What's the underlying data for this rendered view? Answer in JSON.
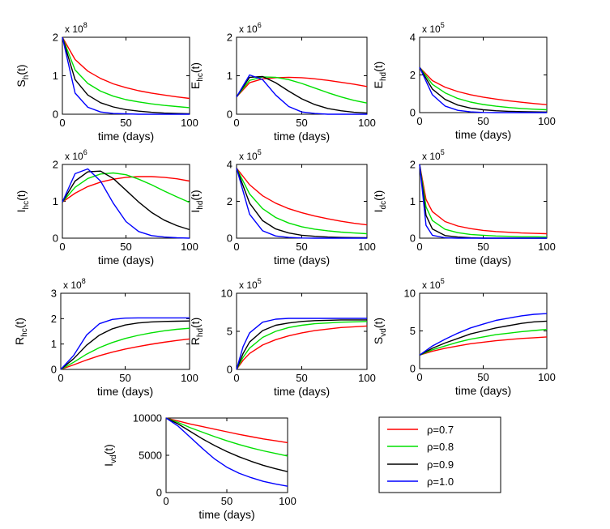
{
  "figure": {
    "background": "#ffffff"
  },
  "legend": {
    "placement": "bottom-right",
    "entries": [
      {
        "label": "ρ=0.7",
        "color": "#ff0000"
      },
      {
        "label": "ρ=0.8",
        "color": "#00e000"
      },
      {
        "label": "ρ=0.9",
        "color": "#000000"
      },
      {
        "label": "ρ=1.0",
        "color": "#0000ff"
      }
    ]
  },
  "chart_data": [
    {
      "type": "line",
      "id": "Sh",
      "ylabel": {
        "main": "S",
        "sub": "h",
        "suffix": "(t)"
      },
      "xlabel": "time (days)",
      "multiplier": {
        "base": "x 10",
        "exp": "8"
      },
      "xlim": [
        0,
        100
      ],
      "ylim": [
        0,
        2
      ],
      "xticks": [
        "0",
        "50",
        "100"
      ],
      "yticks": [
        "0",
        "1",
        "2"
      ],
      "x": [
        0,
        10,
        20,
        30,
        40,
        50,
        60,
        70,
        80,
        90,
        100
      ],
      "series": [
        {
          "name": "ρ=0.7",
          "values": [
            2.0,
            1.42,
            1.12,
            0.93,
            0.79,
            0.69,
            0.61,
            0.55,
            0.5,
            0.45,
            0.41
          ]
        },
        {
          "name": "ρ=0.8",
          "values": [
            2.0,
            1.15,
            0.8,
            0.6,
            0.47,
            0.38,
            0.32,
            0.27,
            0.23,
            0.2,
            0.17
          ]
        },
        {
          "name": "ρ=0.9",
          "values": [
            2.0,
            0.9,
            0.5,
            0.3,
            0.19,
            0.12,
            0.08,
            0.05,
            0.03,
            0.02,
            0.01
          ]
        },
        {
          "name": "ρ=1.0",
          "values": [
            2.0,
            0.55,
            0.18,
            0.06,
            0.02,
            0.01,
            0.0,
            0.0,
            0.0,
            0.0,
            0.0
          ]
        }
      ]
    },
    {
      "type": "line",
      "id": "Ehc",
      "ylabel": {
        "main": "E",
        "sub": "hc",
        "suffix": "(t)"
      },
      "xlabel": "time (days)",
      "multiplier": {
        "base": "x 10",
        "exp": "6"
      },
      "xlim": [
        0,
        100
      ],
      "ylim": [
        0,
        2
      ],
      "xticks": [
        "0",
        "50",
        "100"
      ],
      "yticks": [
        "0",
        "1",
        "2"
      ],
      "x": [
        0,
        10,
        20,
        30,
        40,
        50,
        60,
        70,
        80,
        90,
        100
      ],
      "series": [
        {
          "name": "ρ=0.7",
          "values": [
            0.45,
            0.82,
            0.92,
            0.95,
            0.96,
            0.95,
            0.92,
            0.88,
            0.83,
            0.78,
            0.72
          ]
        },
        {
          "name": "ρ=0.8",
          "values": [
            0.45,
            0.88,
            0.97,
            0.96,
            0.9,
            0.8,
            0.68,
            0.56,
            0.45,
            0.36,
            0.29
          ]
        },
        {
          "name": "ρ=0.9",
          "values": [
            0.45,
            0.96,
            0.98,
            0.82,
            0.6,
            0.4,
            0.25,
            0.15,
            0.09,
            0.05,
            0.03
          ]
        },
        {
          "name": "ρ=1.0",
          "values": [
            0.45,
            1.02,
            0.9,
            0.5,
            0.2,
            0.06,
            0.02,
            0.0,
            0.0,
            0.0,
            0.0
          ]
        }
      ]
    },
    {
      "type": "line",
      "id": "Ehd",
      "ylabel": {
        "main": "E",
        "sub": "hd",
        "suffix": "(t)"
      },
      "xlabel": "time (days)",
      "multiplier": {
        "base": "x 10",
        "exp": "5"
      },
      "xlim": [
        0,
        100
      ],
      "ylim": [
        0,
        4
      ],
      "xticks": [
        "0",
        "50",
        "100"
      ],
      "yticks": [
        "0",
        "2",
        "4"
      ],
      "x": [
        0,
        10,
        20,
        30,
        40,
        50,
        60,
        70,
        80,
        90,
        100
      ],
      "series": [
        {
          "name": "ρ=0.7",
          "values": [
            2.4,
            1.7,
            1.35,
            1.12,
            0.95,
            0.82,
            0.72,
            0.63,
            0.55,
            0.48,
            0.42
          ]
        },
        {
          "name": "ρ=0.8",
          "values": [
            2.4,
            1.5,
            1.05,
            0.75,
            0.56,
            0.43,
            0.34,
            0.27,
            0.22,
            0.18,
            0.15
          ]
        },
        {
          "name": "ρ=0.9",
          "values": [
            2.4,
            1.25,
            0.7,
            0.4,
            0.24,
            0.15,
            0.1,
            0.07,
            0.05,
            0.04,
            0.03
          ]
        },
        {
          "name": "ρ=1.0",
          "values": [
            2.4,
            0.95,
            0.35,
            0.12,
            0.04,
            0.01,
            0.0,
            0.0,
            0.0,
            0.0,
            0.0
          ]
        }
      ]
    },
    {
      "type": "line",
      "id": "Ihc",
      "ylabel": {
        "main": "I",
        "sub": "hc",
        "suffix": "(t)"
      },
      "xlabel": "time (days)",
      "multiplier": {
        "base": "x 10",
        "exp": "6"
      },
      "xlim": [
        0,
        100
      ],
      "ylim": [
        0,
        2
      ],
      "xticks": [
        "0",
        "50",
        "100"
      ],
      "yticks": [
        "0",
        "1",
        "2"
      ],
      "x": [
        0,
        10,
        20,
        30,
        40,
        50,
        60,
        70,
        80,
        90,
        100
      ],
      "series": [
        {
          "name": "ρ=0.7",
          "values": [
            0.98,
            1.22,
            1.4,
            1.52,
            1.6,
            1.65,
            1.67,
            1.67,
            1.65,
            1.61,
            1.55
          ]
        },
        {
          "name": "ρ=0.8",
          "values": [
            0.98,
            1.38,
            1.62,
            1.74,
            1.77,
            1.72,
            1.6,
            1.45,
            1.28,
            1.12,
            0.97
          ]
        },
        {
          "name": "ρ=0.9",
          "values": [
            0.98,
            1.55,
            1.8,
            1.82,
            1.62,
            1.3,
            0.98,
            0.7,
            0.49,
            0.34,
            0.23
          ]
        },
        {
          "name": "ρ=1.0",
          "values": [
            0.98,
            1.75,
            1.88,
            1.55,
            0.95,
            0.45,
            0.18,
            0.07,
            0.03,
            0.01,
            0.0
          ]
        }
      ]
    },
    {
      "type": "line",
      "id": "Ihd",
      "ylabel": {
        "main": "I",
        "sub": "hd",
        "suffix": "(t)"
      },
      "xlabel": "time (days)",
      "multiplier": {
        "base": "x 10",
        "exp": "5"
      },
      "xlim": [
        0,
        100
      ],
      "ylim": [
        0,
        4
      ],
      "xticks": [
        "0",
        "50",
        "100"
      ],
      "yticks": [
        "0",
        "2",
        "4"
      ],
      "x": [
        0,
        10,
        20,
        30,
        40,
        50,
        60,
        70,
        80,
        90,
        100
      ],
      "series": [
        {
          "name": "ρ=0.7",
          "values": [
            3.8,
            2.9,
            2.3,
            1.9,
            1.6,
            1.38,
            1.2,
            1.05,
            0.92,
            0.81,
            0.72
          ]
        },
        {
          "name": "ρ=0.8",
          "values": [
            3.8,
            2.4,
            1.6,
            1.12,
            0.82,
            0.62,
            0.49,
            0.4,
            0.33,
            0.28,
            0.24
          ]
        },
        {
          "name": "ρ=0.9",
          "values": [
            3.8,
            1.9,
            0.95,
            0.5,
            0.28,
            0.16,
            0.1,
            0.06,
            0.04,
            0.03,
            0.02
          ]
        },
        {
          "name": "ρ=1.0",
          "values": [
            3.8,
            1.3,
            0.4,
            0.12,
            0.04,
            0.01,
            0.0,
            0.0,
            0.0,
            0.0,
            0.0
          ]
        }
      ]
    },
    {
      "type": "line",
      "id": "Idc",
      "ylabel": {
        "main": "I",
        "sub": "dc",
        "suffix": "(t)"
      },
      "xlabel": "time (days)",
      "multiplier": {
        "base": "x 10",
        "exp": "5"
      },
      "xlim": [
        0,
        100
      ],
      "ylim": [
        0,
        2
      ],
      "xticks": [
        "0",
        "50",
        "100"
      ],
      "yticks": [
        "0",
        "1",
        "2"
      ],
      "x": [
        0,
        5,
        10,
        20,
        30,
        40,
        50,
        60,
        70,
        80,
        90,
        100
      ],
      "series": [
        {
          "name": "ρ=0.7",
          "values": [
            2.0,
            1.05,
            0.72,
            0.45,
            0.33,
            0.26,
            0.21,
            0.18,
            0.16,
            0.14,
            0.13,
            0.12
          ]
        },
        {
          "name": "ρ=0.8",
          "values": [
            2.0,
            0.85,
            0.48,
            0.24,
            0.15,
            0.1,
            0.08,
            0.06,
            0.05,
            0.04,
            0.04,
            0.03
          ]
        },
        {
          "name": "ρ=0.9",
          "values": [
            2.0,
            0.62,
            0.25,
            0.07,
            0.03,
            0.01,
            0.0,
            0.0,
            0.0,
            0.0,
            0.0,
            0.0
          ]
        },
        {
          "name": "ρ=1.0",
          "values": [
            2.0,
            0.35,
            0.08,
            0.01,
            0.0,
            0.0,
            0.0,
            0.0,
            0.0,
            0.0,
            0.0,
            0.0
          ]
        }
      ]
    },
    {
      "type": "line",
      "id": "Rhc",
      "ylabel": {
        "main": "R",
        "sub": "hc",
        "suffix": "(t)"
      },
      "xlabel": "time (days)",
      "multiplier": {
        "base": "x 10",
        "exp": "8"
      },
      "xlim": [
        0,
        100
      ],
      "ylim": [
        0,
        3
      ],
      "xticks": [
        "0",
        "50",
        "100"
      ],
      "yticks": [
        "0",
        "1",
        "2",
        "3"
      ],
      "x": [
        0,
        10,
        20,
        30,
        40,
        50,
        60,
        70,
        80,
        90,
        100
      ],
      "series": [
        {
          "name": "ρ=0.7",
          "values": [
            0.0,
            0.18,
            0.37,
            0.54,
            0.68,
            0.8,
            0.9,
            0.99,
            1.07,
            1.14,
            1.2
          ]
        },
        {
          "name": "ρ=0.8",
          "values": [
            0.0,
            0.28,
            0.6,
            0.86,
            1.06,
            1.22,
            1.34,
            1.44,
            1.52,
            1.58,
            1.62
          ]
        },
        {
          "name": "ρ=0.9",
          "values": [
            0.0,
            0.42,
            0.95,
            1.35,
            1.6,
            1.75,
            1.83,
            1.87,
            1.89,
            1.9,
            1.91
          ]
        },
        {
          "name": "ρ=1.0",
          "values": [
            0.0,
            0.55,
            1.35,
            1.8,
            1.97,
            2.02,
            2.03,
            2.03,
            2.03,
            2.03,
            2.03
          ]
        }
      ]
    },
    {
      "type": "line",
      "id": "Rhd",
      "ylabel": {
        "main": "R",
        "sub": "hd",
        "suffix": "(t)"
      },
      "xlabel": "time (days)",
      "multiplier": {
        "base": "x 10",
        "exp": "5"
      },
      "xlim": [
        0,
        100
      ],
      "ylim": [
        0,
        10
      ],
      "xticks": [
        "0",
        "50",
        "100"
      ],
      "yticks": [
        "0",
        "5",
        "10"
      ],
      "x": [
        0,
        5,
        10,
        20,
        30,
        40,
        50,
        60,
        70,
        80,
        90,
        100
      ],
      "series": [
        {
          "name": "ρ=0.7",
          "values": [
            0.0,
            1.2,
            2.1,
            3.2,
            3.9,
            4.4,
            4.8,
            5.1,
            5.3,
            5.5,
            5.6,
            5.7
          ]
        },
        {
          "name": "ρ=0.8",
          "values": [
            0.0,
            1.6,
            2.8,
            4.2,
            5.0,
            5.5,
            5.8,
            6.0,
            6.1,
            6.2,
            6.25,
            6.3
          ]
        },
        {
          "name": "ρ=0.9",
          "values": [
            0.0,
            2.1,
            3.6,
            5.1,
            5.8,
            6.1,
            6.3,
            6.4,
            6.45,
            6.5,
            6.5,
            6.5
          ]
        },
        {
          "name": "ρ=1.0",
          "values": [
            0.0,
            3.0,
            4.8,
            6.2,
            6.6,
            6.7,
            6.7,
            6.7,
            6.7,
            6.7,
            6.7,
            6.7
          ]
        }
      ]
    },
    {
      "type": "line",
      "id": "Svd",
      "ylabel": {
        "main": "S",
        "sub": "vd",
        "suffix": "(t)"
      },
      "xlabel": "time (days)",
      "multiplier": {
        "base": "x 10",
        "exp": "5"
      },
      "xlim": [
        0,
        100
      ],
      "ylim": [
        0,
        10
      ],
      "xticks": [
        "0",
        "50",
        "100"
      ],
      "yticks": [
        "0",
        "5",
        "10"
      ],
      "x": [
        0,
        10,
        20,
        30,
        40,
        50,
        60,
        70,
        80,
        90,
        100
      ],
      "series": [
        {
          "name": "ρ=0.7",
          "values": [
            1.8,
            2.3,
            2.7,
            3.0,
            3.3,
            3.5,
            3.7,
            3.85,
            4.0,
            4.1,
            4.2
          ]
        },
        {
          "name": "ρ=0.8",
          "values": [
            1.8,
            2.5,
            3.0,
            3.5,
            3.9,
            4.2,
            4.5,
            4.7,
            4.9,
            5.05,
            5.2
          ]
        },
        {
          "name": "ρ=0.9",
          "values": [
            1.8,
            2.7,
            3.4,
            4.0,
            4.6,
            5.0,
            5.4,
            5.7,
            6.0,
            6.2,
            6.3
          ]
        },
        {
          "name": "ρ=1.0",
          "values": [
            1.8,
            3.0,
            3.9,
            4.7,
            5.4,
            5.9,
            6.4,
            6.7,
            7.0,
            7.2,
            7.3
          ]
        }
      ]
    },
    {
      "type": "line",
      "id": "Ivd",
      "ylabel": {
        "main": "I",
        "sub": "vd",
        "suffix": "(t)"
      },
      "xlabel": "time (days)",
      "xlim": [
        0,
        100
      ],
      "ylim": [
        0,
        10000
      ],
      "xticks": [
        "0",
        "50",
        "100"
      ],
      "yticks": [
        "0",
        "5000",
        "10000"
      ],
      "x": [
        0,
        10,
        20,
        30,
        40,
        50,
        60,
        70,
        80,
        90,
        100
      ],
      "series": [
        {
          "name": "ρ=0.7",
          "values": [
            10000,
            9600,
            9200,
            8850,
            8500,
            8150,
            7800,
            7500,
            7200,
            6950,
            6700
          ]
        },
        {
          "name": "ρ=0.8",
          "values": [
            10000,
            9400,
            8700,
            8100,
            7500,
            6950,
            6450,
            6000,
            5600,
            5250,
            4900
          ]
        },
        {
          "name": "ρ=0.9",
          "values": [
            10000,
            9200,
            8200,
            7200,
            6300,
            5500,
            4800,
            4200,
            3650,
            3200,
            2800
          ]
        },
        {
          "name": "ρ=1.0",
          "values": [
            10000,
            8900,
            7400,
            5900,
            4500,
            3400,
            2600,
            2000,
            1500,
            1150,
            850
          ]
        }
      ]
    }
  ]
}
